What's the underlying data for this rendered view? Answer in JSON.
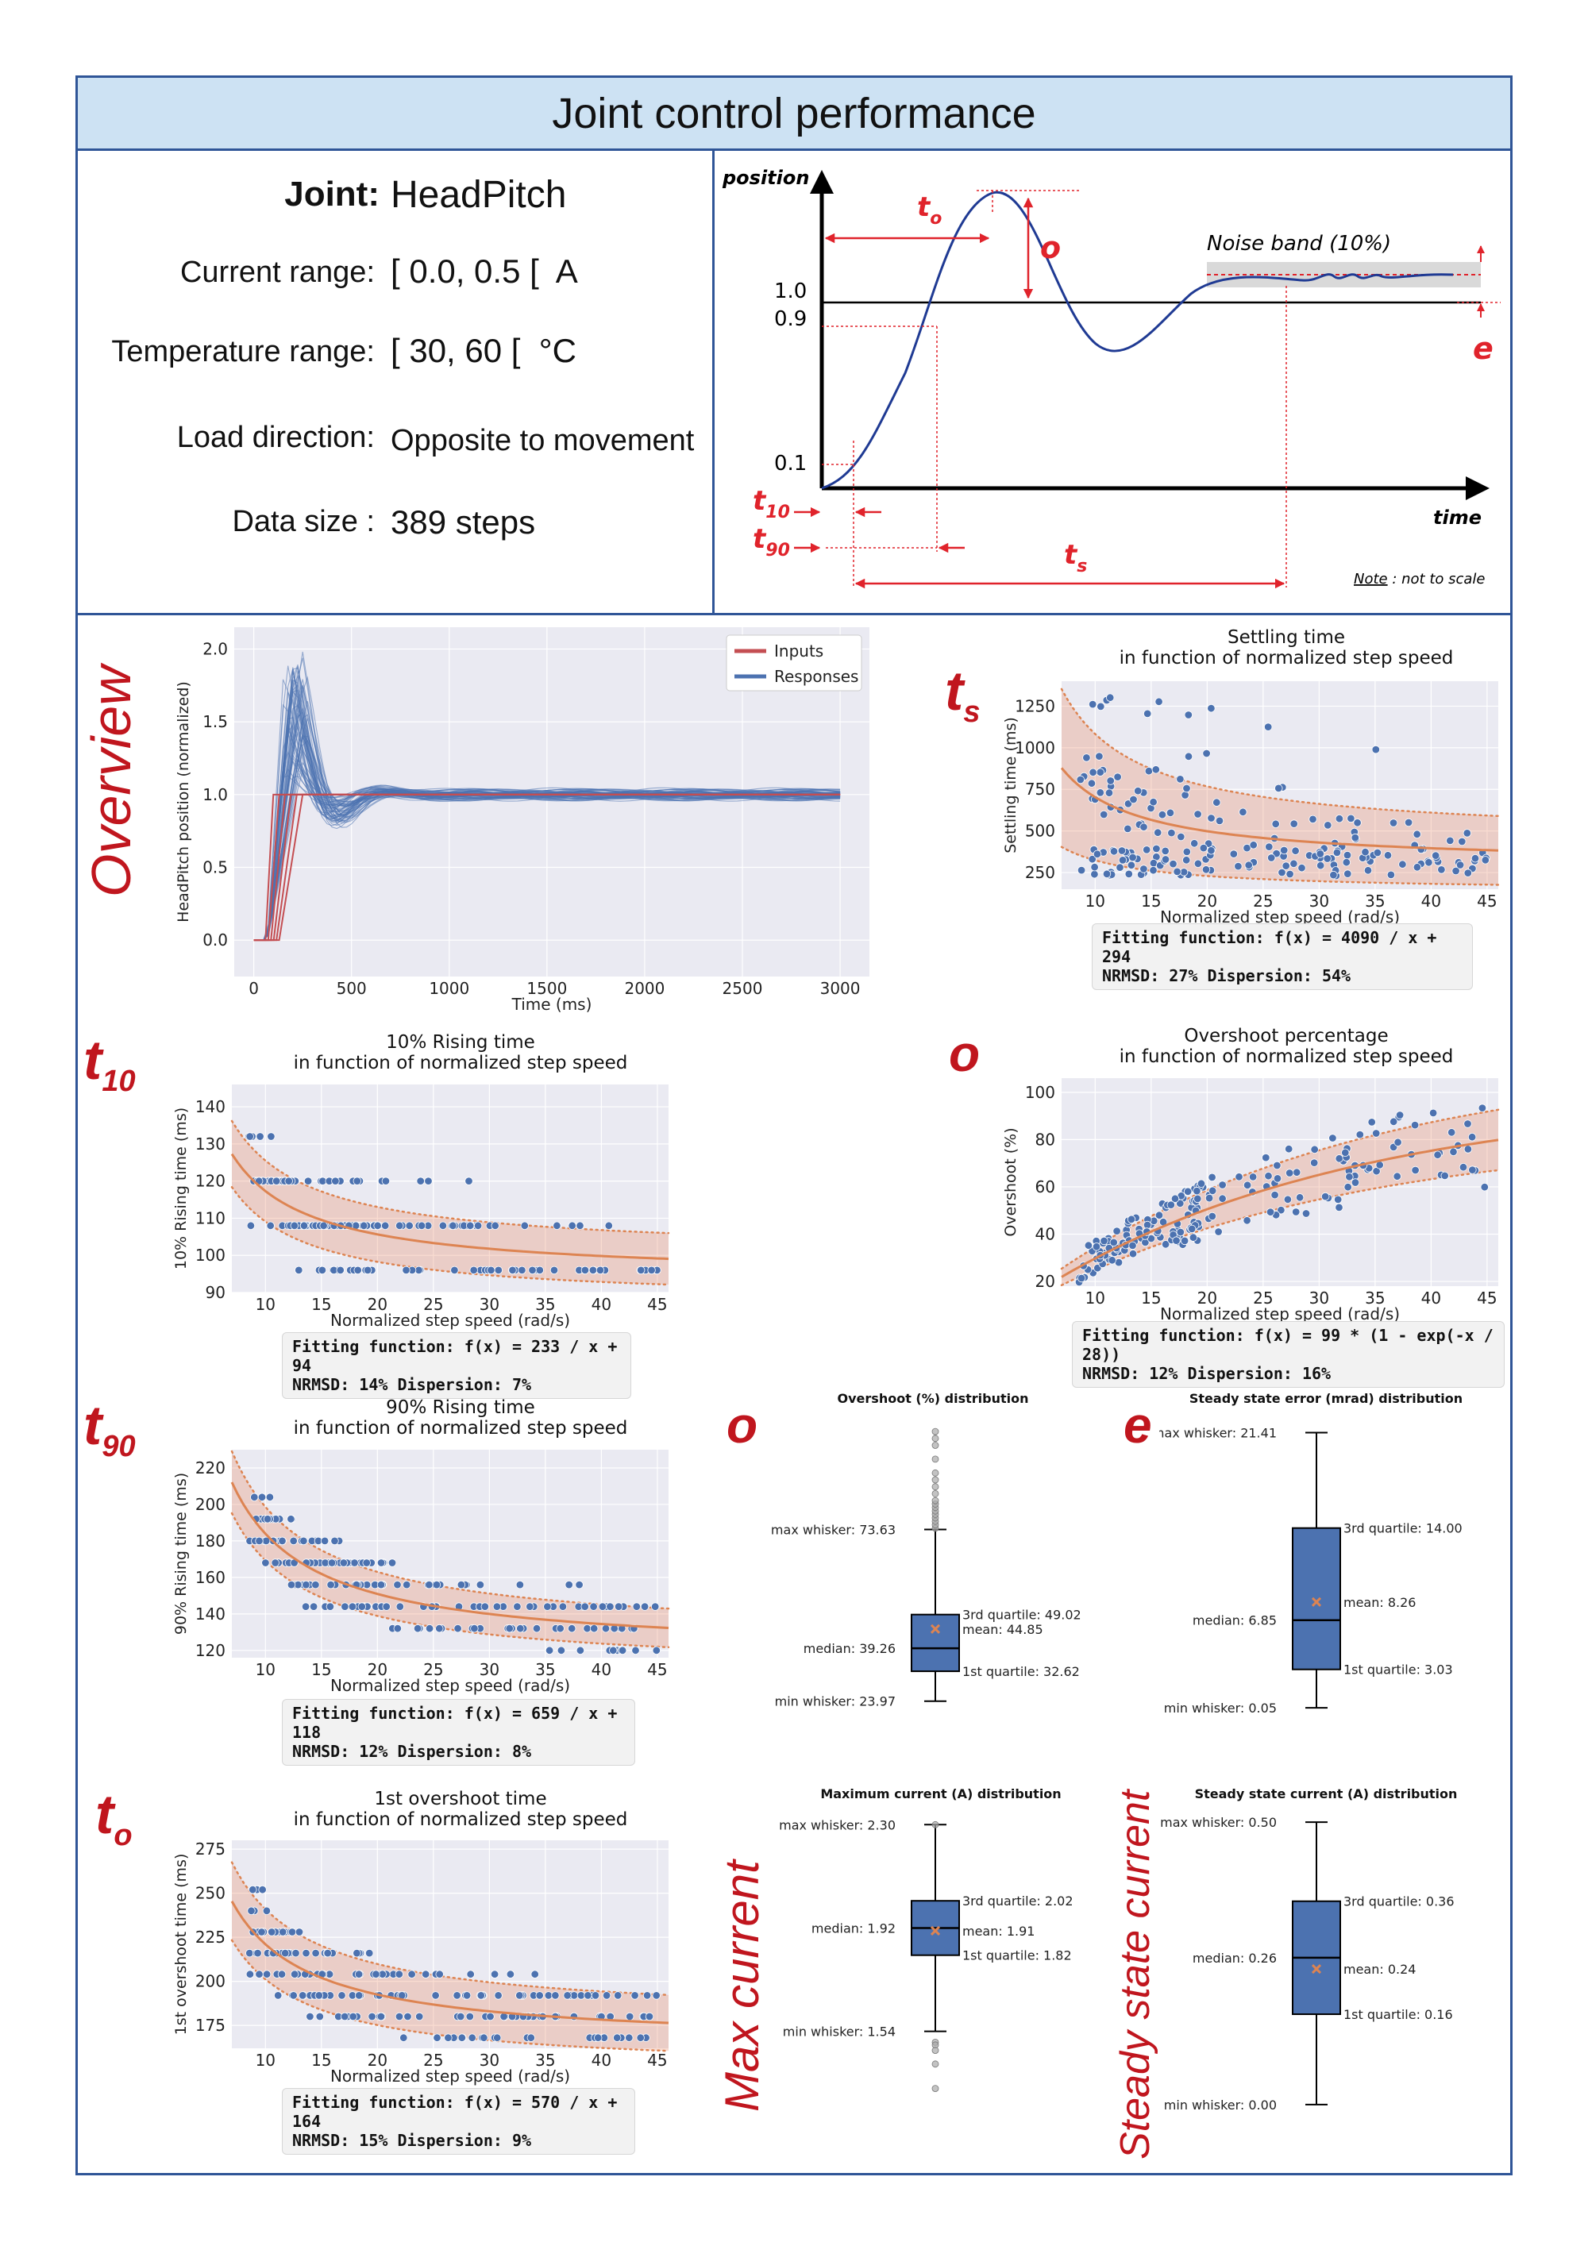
{
  "title": "Joint control performance",
  "info": {
    "joint_label": "Joint:",
    "joint_value": "HeadPitch",
    "current_label": "Current range:",
    "current_value": "[ 0.0, 0.5 [  A",
    "temperature_label": "Temperature range:",
    "temperature_value": "[ 30, 60 [  °C",
    "load_label": "Load direction:",
    "load_value": "Opposite to movement",
    "size_label": "Data size :",
    "size_value": "389 steps"
  },
  "schematic": {
    "position_label": "position",
    "time_label": "time",
    "noise_label": "Noise band (10%)",
    "level_1": "1.0",
    "level_09": "0.9",
    "level_01": "0.1",
    "t_o": "t",
    "t_o_sub": "o",
    "o_label": "o",
    "e_label": "e",
    "t10": "t",
    "t10_sub": "10",
    "t90": "t",
    "t90_sub": "90",
    "ts": "t",
    "ts_sub": "s",
    "note": "Note",
    "note_rest": " : not to scale"
  },
  "side_labels": {
    "overview": "Overview",
    "ts": "t",
    "ts_sub": "s",
    "t10": "t",
    "t10_sub": "10",
    "o": "o",
    "t90": "t",
    "t90_sub": "90",
    "o2": "o",
    "e": "e",
    "to": "t",
    "to_sub": "o",
    "max_current": "Max current",
    "steady_current": "Steady state current"
  },
  "chart_data": [
    {
      "id": "overview",
      "type": "line",
      "xlabel": "Time (ms)",
      "ylabel": "HeadPitch position (normalized)",
      "xlim": [
        -100,
        3150
      ],
      "ylim": [
        -0.25,
        2.15
      ],
      "xticks": [
        "0",
        "500",
        "1000",
        "1500",
        "2000",
        "2500",
        "3000"
      ],
      "yticks": [
        "0.0",
        "0.5",
        "1.0",
        "1.5",
        "2.0"
      ],
      "legend": [
        "Inputs",
        "Responses"
      ],
      "legend_position": "top-right",
      "colors": {
        "inputs": "#c44e52",
        "responses": "#4c72b0"
      }
    },
    {
      "id": "ts",
      "type": "scatter",
      "title": "Settling time",
      "subtitle": "in function of normalized step speed",
      "xlabel": "Normalized step speed (rad/s)",
      "ylabel": "Settling time (ms)",
      "xlim": [
        7,
        46
      ],
      "ylim": [
        150,
        1400
      ],
      "xticks": [
        "10",
        "15",
        "20",
        "25",
        "30",
        "35",
        "40",
        "45"
      ],
      "yticks": [
        "250",
        "500",
        "750",
        "1000",
        "1250"
      ],
      "fit": {
        "a": 4090,
        "b": 294
      },
      "band": 0.54,
      "fit_text": "Fitting function: f(x) = 4090 / x  + 294",
      "stats_text": "NRMSD: 27%  Dispersion: 54%"
    },
    {
      "id": "t10",
      "type": "scatter",
      "title": "10% Rising time",
      "subtitle": "in function of normalized step speed",
      "xlabel": "Normalized step speed (rad/s)",
      "ylabel": "10% Rising time (ms)",
      "xlim": [
        7,
        46
      ],
      "ylim": [
        90,
        146
      ],
      "xticks": [
        "10",
        "15",
        "20",
        "25",
        "30",
        "35",
        "40",
        "45"
      ],
      "yticks": [
        "90",
        "100",
        "110",
        "120",
        "130",
        "140"
      ],
      "fit": {
        "a": 233,
        "b": 94
      },
      "band": 0.07,
      "fit_text": "Fitting function: f(x) = 233 / x  + 94",
      "stats_text": "NRMSD: 14%  Dispersion: 7%"
    },
    {
      "id": "overshoot",
      "type": "scatter",
      "title": "Overshoot percentage",
      "subtitle": "in function of normalized step speed",
      "xlabel": "Normalized step speed (rad/s)",
      "ylabel": "Overshoot (%)",
      "xlim": [
        7,
        46
      ],
      "ylim": [
        18,
        106
      ],
      "xticks": [
        "10",
        "15",
        "20",
        "25",
        "30",
        "35",
        "40",
        "45"
      ],
      "yticks": [
        "20",
        "40",
        "60",
        "80",
        "100"
      ],
      "fit": {
        "a": 99,
        "c": 28
      },
      "band": 0.16,
      "fit_text": "Fitting function: f(x) = 99 * (1 - exp(-x / 28))",
      "stats_text": "NRMSD: 12%  Dispersion: 16%"
    },
    {
      "id": "t90",
      "type": "scatter",
      "title": "90% Rising time",
      "subtitle": "in function of normalized step speed",
      "xlabel": "Normalized step speed (rad/s)",
      "ylabel": "90% Rising time (ms)",
      "xlim": [
        7,
        46
      ],
      "ylim": [
        116,
        230
      ],
      "xticks": [
        "10",
        "15",
        "20",
        "25",
        "30",
        "35",
        "40",
        "45"
      ],
      "yticks": [
        "120",
        "140",
        "160",
        "180",
        "200",
        "220"
      ],
      "fit": {
        "a": 659,
        "b": 118
      },
      "band": 0.08,
      "fit_text": "Fitting function: f(x) = 659 / x  + 118",
      "stats_text": "NRMSD: 12%  Dispersion: 8%"
    },
    {
      "id": "to",
      "type": "scatter",
      "title": "1st overshoot time",
      "subtitle": "in function of normalized step speed",
      "xlabel": "Normalized step speed (rad/s)",
      "ylabel": "1st overshoot time (ms)",
      "xlim": [
        7,
        46
      ],
      "ylim": [
        162,
        280
      ],
      "xticks": [
        "10",
        "15",
        "20",
        "25",
        "30",
        "35",
        "40",
        "45"
      ],
      "yticks": [
        "175",
        "200",
        "225",
        "250",
        "275"
      ],
      "fit": {
        "a": 570,
        "b": 164
      },
      "band": 0.09,
      "fit_text": "Fitting function: f(x) = 570 / x  + 164",
      "stats_text": "NRMSD: 15%  Dispersion: 9%"
    },
    {
      "id": "box_overshoot",
      "type": "box",
      "title": "Overshoot (%) distribution",
      "min": 23.97,
      "q1": 32.62,
      "median": 39.26,
      "mean": 44.85,
      "q3": 49.02,
      "max": 73.63,
      "ylim": [
        20,
        105
      ],
      "labels": {
        "max": "max whisker: 73.63",
        "q3": "3rd quartile: 49.02",
        "mean": "mean: 44.85",
        "median": "median: 39.26",
        "q1": "1st quartile: 32.62",
        "min": "min whisker: 23.97"
      },
      "outliers": [
        74,
        75,
        76,
        77,
        78,
        79,
        80,
        81,
        82,
        84,
        86,
        88,
        90,
        94,
        98,
        100,
        102
      ]
    },
    {
      "id": "box_error",
      "type": "box",
      "title": "Steady state error (mrad) distribution",
      "min": 0.05,
      "q1": 3.03,
      "median": 6.85,
      "mean": 8.26,
      "q3": 14.0,
      "max": 21.41,
      "ylim": [
        -0.5,
        22.3
      ],
      "labels": {
        "max": "max whisker: 21.41",
        "q3": "3rd quartile: 14.00",
        "mean": "mean: 8.26",
        "median": "median: 6.85",
        "q1": "1st quartile: 3.03",
        "min": "min whisker: 0.05"
      },
      "outliers": []
    },
    {
      "id": "box_maxcur",
      "type": "box",
      "title": "Maximum current (A) distribution",
      "min": 1.54,
      "q1": 1.82,
      "median": 1.92,
      "mean": 1.91,
      "q3": 2.02,
      "max": 2.3,
      "ylim": [
        1.25,
        2.33
      ],
      "labels": {
        "max": "max whisker: 2.30",
        "q3": "3rd quartile: 2.02",
        "mean": "mean: 1.91",
        "median": "median: 1.92",
        "q1": "1st quartile: 1.82",
        "min": "min whisker: 1.54"
      },
      "outliers": [
        1.5,
        1.49,
        1.47,
        1.42,
        1.33,
        2.3
      ]
    },
    {
      "id": "box_steadycur",
      "type": "box",
      "title": "Steady state current (A) distribution",
      "min": 0.0,
      "q1": 0.16,
      "median": 0.26,
      "mean": 0.24,
      "q3": 0.36,
      "max": 0.5,
      "ylim": [
        -0.01,
        0.51
      ],
      "labels": {
        "max": "max whisker: 0.50",
        "q3": "3rd quartile: 0.36",
        "mean": "mean: 0.24",
        "median": "median: 0.26",
        "q1": "1st quartile: 0.16",
        "min": "min whisker: 0.00"
      },
      "outliers": []
    }
  ]
}
